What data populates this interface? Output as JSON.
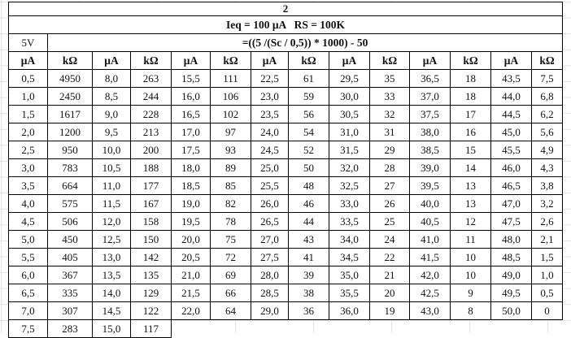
{
  "page": {
    "sheet_number": "2",
    "title": "Ieq = 100 μA   RS = 100K",
    "voltage_label": "5V",
    "formula": "=((5 /(Sc / 0,5)) * 1000) - 50"
  },
  "table": {
    "header_units": [
      "μA",
      "kΩ",
      "μA",
      "kΩ",
      "μA",
      "kΩ",
      "μA",
      "kΩ",
      "μA",
      "kΩ",
      "μA",
      "kΩ",
      "μA",
      "kΩ"
    ],
    "rows": [
      [
        "0,5",
        "4950",
        "8,0",
        "263",
        "15,5",
        "111",
        "22,5",
        "61",
        "29,5",
        "35",
        "36,5",
        "18",
        "43,5",
        "7,5"
      ],
      [
        "1,0",
        "2450",
        "8,5",
        "244",
        "16,0",
        "106",
        "23,0",
        "59",
        "30,0",
        "33",
        "37,0",
        "18",
        "44,0",
        "6,8"
      ],
      [
        "1,5",
        "1617",
        "9,0",
        "228",
        "16,5",
        "102",
        "23,5",
        "56",
        "30,5",
        "32",
        "37,5",
        "17",
        "44,5",
        "6,2"
      ],
      [
        "2,0",
        "1200",
        "9,5",
        "213",
        "17,0",
        "97",
        "24,0",
        "54",
        "31,0",
        "31",
        "38,0",
        "16",
        "45,0",
        "5,6"
      ],
      [
        "2,5",
        "950",
        "10,0",
        "200",
        "17,5",
        "93",
        "24,5",
        "52",
        "31,5",
        "29",
        "38,5",
        "15",
        "45,5",
        "4,9"
      ],
      [
        "3,0",
        "783",
        "10,5",
        "188",
        "18,0",
        "89",
        "25,0",
        "50",
        "32,0",
        "28",
        "39,0",
        "14",
        "46,0",
        "4,3"
      ],
      [
        "3,5",
        "664",
        "11,0",
        "177",
        "18,5",
        "85",
        "25,5",
        "48",
        "32,5",
        "27",
        "39,5",
        "13",
        "46,5",
        "3,8"
      ],
      [
        "4,0",
        "575",
        "11,5",
        "167",
        "19,0",
        "82",
        "26,0",
        "46",
        "33,0",
        "26",
        "40,0",
        "13",
        "47,0",
        "3,2"
      ],
      [
        "4,5",
        "506",
        "12,0",
        "158",
        "19,5",
        "78",
        "26,5",
        "44",
        "33,5",
        "25",
        "40,5",
        "12",
        "47,5",
        "2,6"
      ],
      [
        "5,0",
        "450",
        "12,5",
        "150",
        "20,0",
        "75",
        "27,0",
        "43",
        "34,0",
        "24",
        "41,0",
        "11",
        "48,0",
        "2,1"
      ],
      [
        "5,5",
        "405",
        "13,0",
        "142",
        "20,5",
        "72",
        "27,5",
        "41",
        "34,5",
        "22",
        "41,5",
        "10",
        "48,5",
        "1,5"
      ],
      [
        "6,0",
        "367",
        "13,5",
        "135",
        "21,0",
        "69",
        "28,0",
        "39",
        "35,0",
        "21",
        "42,0",
        "10",
        "49,0",
        "1,0"
      ],
      [
        "6,5",
        "335",
        "14,0",
        "129",
        "21,5",
        "66",
        "28,5",
        "38",
        "35,5",
        "20",
        "42,5",
        "9",
        "49,5",
        "0,5"
      ],
      [
        "7,0",
        "307",
        "14,5",
        "122",
        "22,0",
        "64",
        "29,0",
        "36",
        "36,0",
        "19",
        "43,0",
        "8",
        "50,0",
        "0"
      ],
      [
        "7,5",
        "283",
        "15,0",
        "117"
      ]
    ]
  }
}
